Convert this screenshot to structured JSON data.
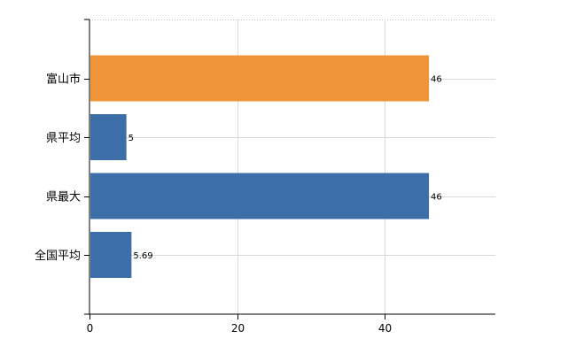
{
  "chart_data": {
    "type": "bar",
    "orientation": "horizontal",
    "categories": [
      "富山市",
      "県平均",
      "県最大",
      "全国平均"
    ],
    "values": [
      46,
      5,
      46,
      5.69
    ],
    "data_labels": [
      "46",
      "5",
      "46",
      "5.69"
    ],
    "bar_colors": [
      "#f0943a",
      "#3c6ea8",
      "#3c6ea8",
      "#3c6ea8"
    ],
    "xlim": [
      0,
      55
    ],
    "x_ticks": [
      0,
      20,
      40
    ],
    "x_tick_labels": [
      "0",
      "20",
      "40"
    ],
    "grid": true,
    "title": "",
    "xlabel": "",
    "ylabel": ""
  }
}
